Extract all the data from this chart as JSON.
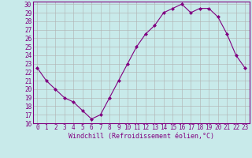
{
  "x": [
    0,
    1,
    2,
    3,
    4,
    5,
    6,
    7,
    8,
    9,
    10,
    11,
    12,
    13,
    14,
    15,
    16,
    17,
    18,
    19,
    20,
    21,
    22,
    23
  ],
  "y": [
    22.5,
    21.0,
    20.0,
    19.0,
    18.5,
    17.5,
    16.5,
    17.0,
    19.0,
    21.0,
    23.0,
    25.0,
    26.5,
    27.5,
    29.0,
    29.5,
    30.0,
    29.0,
    29.5,
    29.5,
    28.5,
    26.5,
    24.0,
    22.5
  ],
  "line_color": "#800080",
  "marker": "D",
  "marker_size": 2,
  "bg_color": "#c8eaea",
  "grid_color": "#b0b0b0",
  "xlabel": "Windchill (Refroidissement éolien,°C)",
  "xlim_min": -0.5,
  "xlim_max": 23.5,
  "ylim_min": 16,
  "ylim_max": 30,
  "xticks": [
    0,
    1,
    2,
    3,
    4,
    5,
    6,
    7,
    8,
    9,
    10,
    11,
    12,
    13,
    14,
    15,
    16,
    17,
    18,
    19,
    20,
    21,
    22,
    23
  ],
  "yticks": [
    16,
    17,
    18,
    19,
    20,
    21,
    22,
    23,
    24,
    25,
    26,
    27,
    28,
    29,
    30
  ],
  "tick_color": "#800080",
  "label_color": "#800080",
  "spine_color": "#800080",
  "tick_fontsize": 5.5,
  "xlabel_fontsize": 6.0,
  "linewidth": 0.8
}
